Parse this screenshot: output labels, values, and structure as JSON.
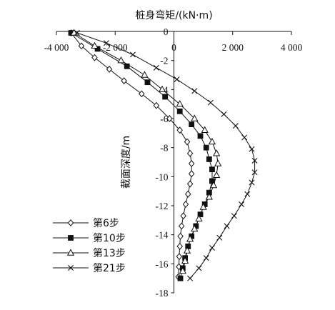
{
  "chart_data": {
    "type": "line",
    "title": "桩身弯矩/(kN·m)",
    "xlabel": "桩身弯矩/(kN·m)",
    "ylabel": "截面深度/m",
    "xlim": [
      -4000,
      4000
    ],
    "ylim": [
      0,
      -18
    ],
    "x_ticks": [
      -4000,
      -2000,
      0,
      2000,
      4000
    ],
    "x_tick_labels": [
      "-4 000",
      "-2 000",
      "0",
      "2 000",
      "4 000"
    ],
    "y_ticks": [
      0,
      -2,
      -4,
      -6,
      -8,
      -10,
      -12,
      -14,
      -16,
      -18
    ],
    "y_tick_labels": [
      "0",
      "-2",
      "-4",
      "-6",
      "-8",
      "-10",
      "-12",
      "-14",
      "-16",
      "-18"
    ],
    "grid": false,
    "legend_position": "bottom-left",
    "series": [
      {
        "name": "第6步",
        "marker": "diamond",
        "points": [
          [
            -3500,
            -0.1
          ],
          [
            -3150,
            -1.0
          ],
          [
            -2700,
            -1.8
          ],
          [
            -2200,
            -2.6
          ],
          [
            -1700,
            -3.4
          ],
          [
            -1100,
            -4.3
          ],
          [
            -600,
            -5.1
          ],
          [
            -150,
            -6.0
          ],
          [
            200,
            -6.8
          ],
          [
            450,
            -7.6
          ],
          [
            550,
            -8.4
          ],
          [
            600,
            -9.1
          ],
          [
            600,
            -9.8
          ],
          [
            550,
            -10.5
          ],
          [
            480,
            -11.2
          ],
          [
            400,
            -11.9
          ],
          [
            320,
            -12.7
          ],
          [
            260,
            -13.4
          ],
          [
            220,
            -14.1
          ],
          [
            200,
            -14.8
          ],
          [
            180,
            -15.5
          ],
          [
            170,
            -16.2
          ],
          [
            150,
            -16.9
          ]
        ]
      },
      {
        "name": "第10步",
        "marker": "filled-square",
        "points": [
          [
            -3500,
            -0.1
          ],
          [
            -2600,
            -1.2
          ],
          [
            -1600,
            -2.4
          ],
          [
            -900,
            -3.5
          ],
          [
            -300,
            -4.5
          ],
          [
            200,
            -5.5
          ],
          [
            600,
            -6.4
          ],
          [
            900,
            -7.2
          ],
          [
            1100,
            -8.0
          ],
          [
            1200,
            -8.8
          ],
          [
            1300,
            -9.5
          ],
          [
            1300,
            -10.3
          ],
          [
            1200,
            -11.1
          ],
          [
            1050,
            -11.9
          ],
          [
            900,
            -12.6
          ],
          [
            750,
            -13.4
          ],
          [
            600,
            -14.1
          ],
          [
            480,
            -14.8
          ],
          [
            380,
            -15.6
          ],
          [
            300,
            -16.3
          ],
          [
            220,
            -17.0
          ]
        ]
      },
      {
        "name": "第13步",
        "marker": "triangle",
        "points": [
          [
            -3400,
            -0.1
          ],
          [
            -2700,
            -1.0
          ],
          [
            -1800,
            -2.0
          ],
          [
            -1000,
            -3.0
          ],
          [
            -400,
            -4.0
          ],
          [
            200,
            -5.0
          ],
          [
            700,
            -6.0
          ],
          [
            1050,
            -6.8
          ],
          [
            1300,
            -7.6
          ],
          [
            1450,
            -8.4
          ],
          [
            1500,
            -9.1
          ],
          [
            1450,
            -9.9
          ],
          [
            1350,
            -10.6
          ],
          [
            1200,
            -11.4
          ],
          [
            1000,
            -12.1
          ],
          [
            850,
            -12.9
          ],
          [
            700,
            -13.6
          ],
          [
            550,
            -14.3
          ],
          [
            450,
            -15.1
          ],
          [
            380,
            -15.8
          ],
          [
            300,
            -16.5
          ]
        ]
      },
      {
        "name": "第21步",
        "marker": "cross",
        "points": [
          [
            -3300,
            -0.1
          ],
          [
            -2300,
            -0.8
          ],
          [
            -1400,
            -1.6
          ],
          [
            -600,
            -2.5
          ],
          [
            100,
            -3.3
          ],
          [
            700,
            -4.1
          ],
          [
            1250,
            -4.9
          ],
          [
            1700,
            -5.7
          ],
          [
            2100,
            -6.5
          ],
          [
            2400,
            -7.3
          ],
          [
            2650,
            -8.1
          ],
          [
            2750,
            -8.9
          ],
          [
            2750,
            -9.7
          ],
          [
            2650,
            -10.4
          ],
          [
            2500,
            -11.2
          ],
          [
            2300,
            -11.9
          ],
          [
            2050,
            -12.7
          ],
          [
            1800,
            -13.4
          ],
          [
            1550,
            -14.2
          ],
          [
            1300,
            -14.9
          ],
          [
            1100,
            -15.6
          ],
          [
            850,
            -16.3
          ],
          [
            550,
            -17.0
          ]
        ]
      }
    ]
  }
}
